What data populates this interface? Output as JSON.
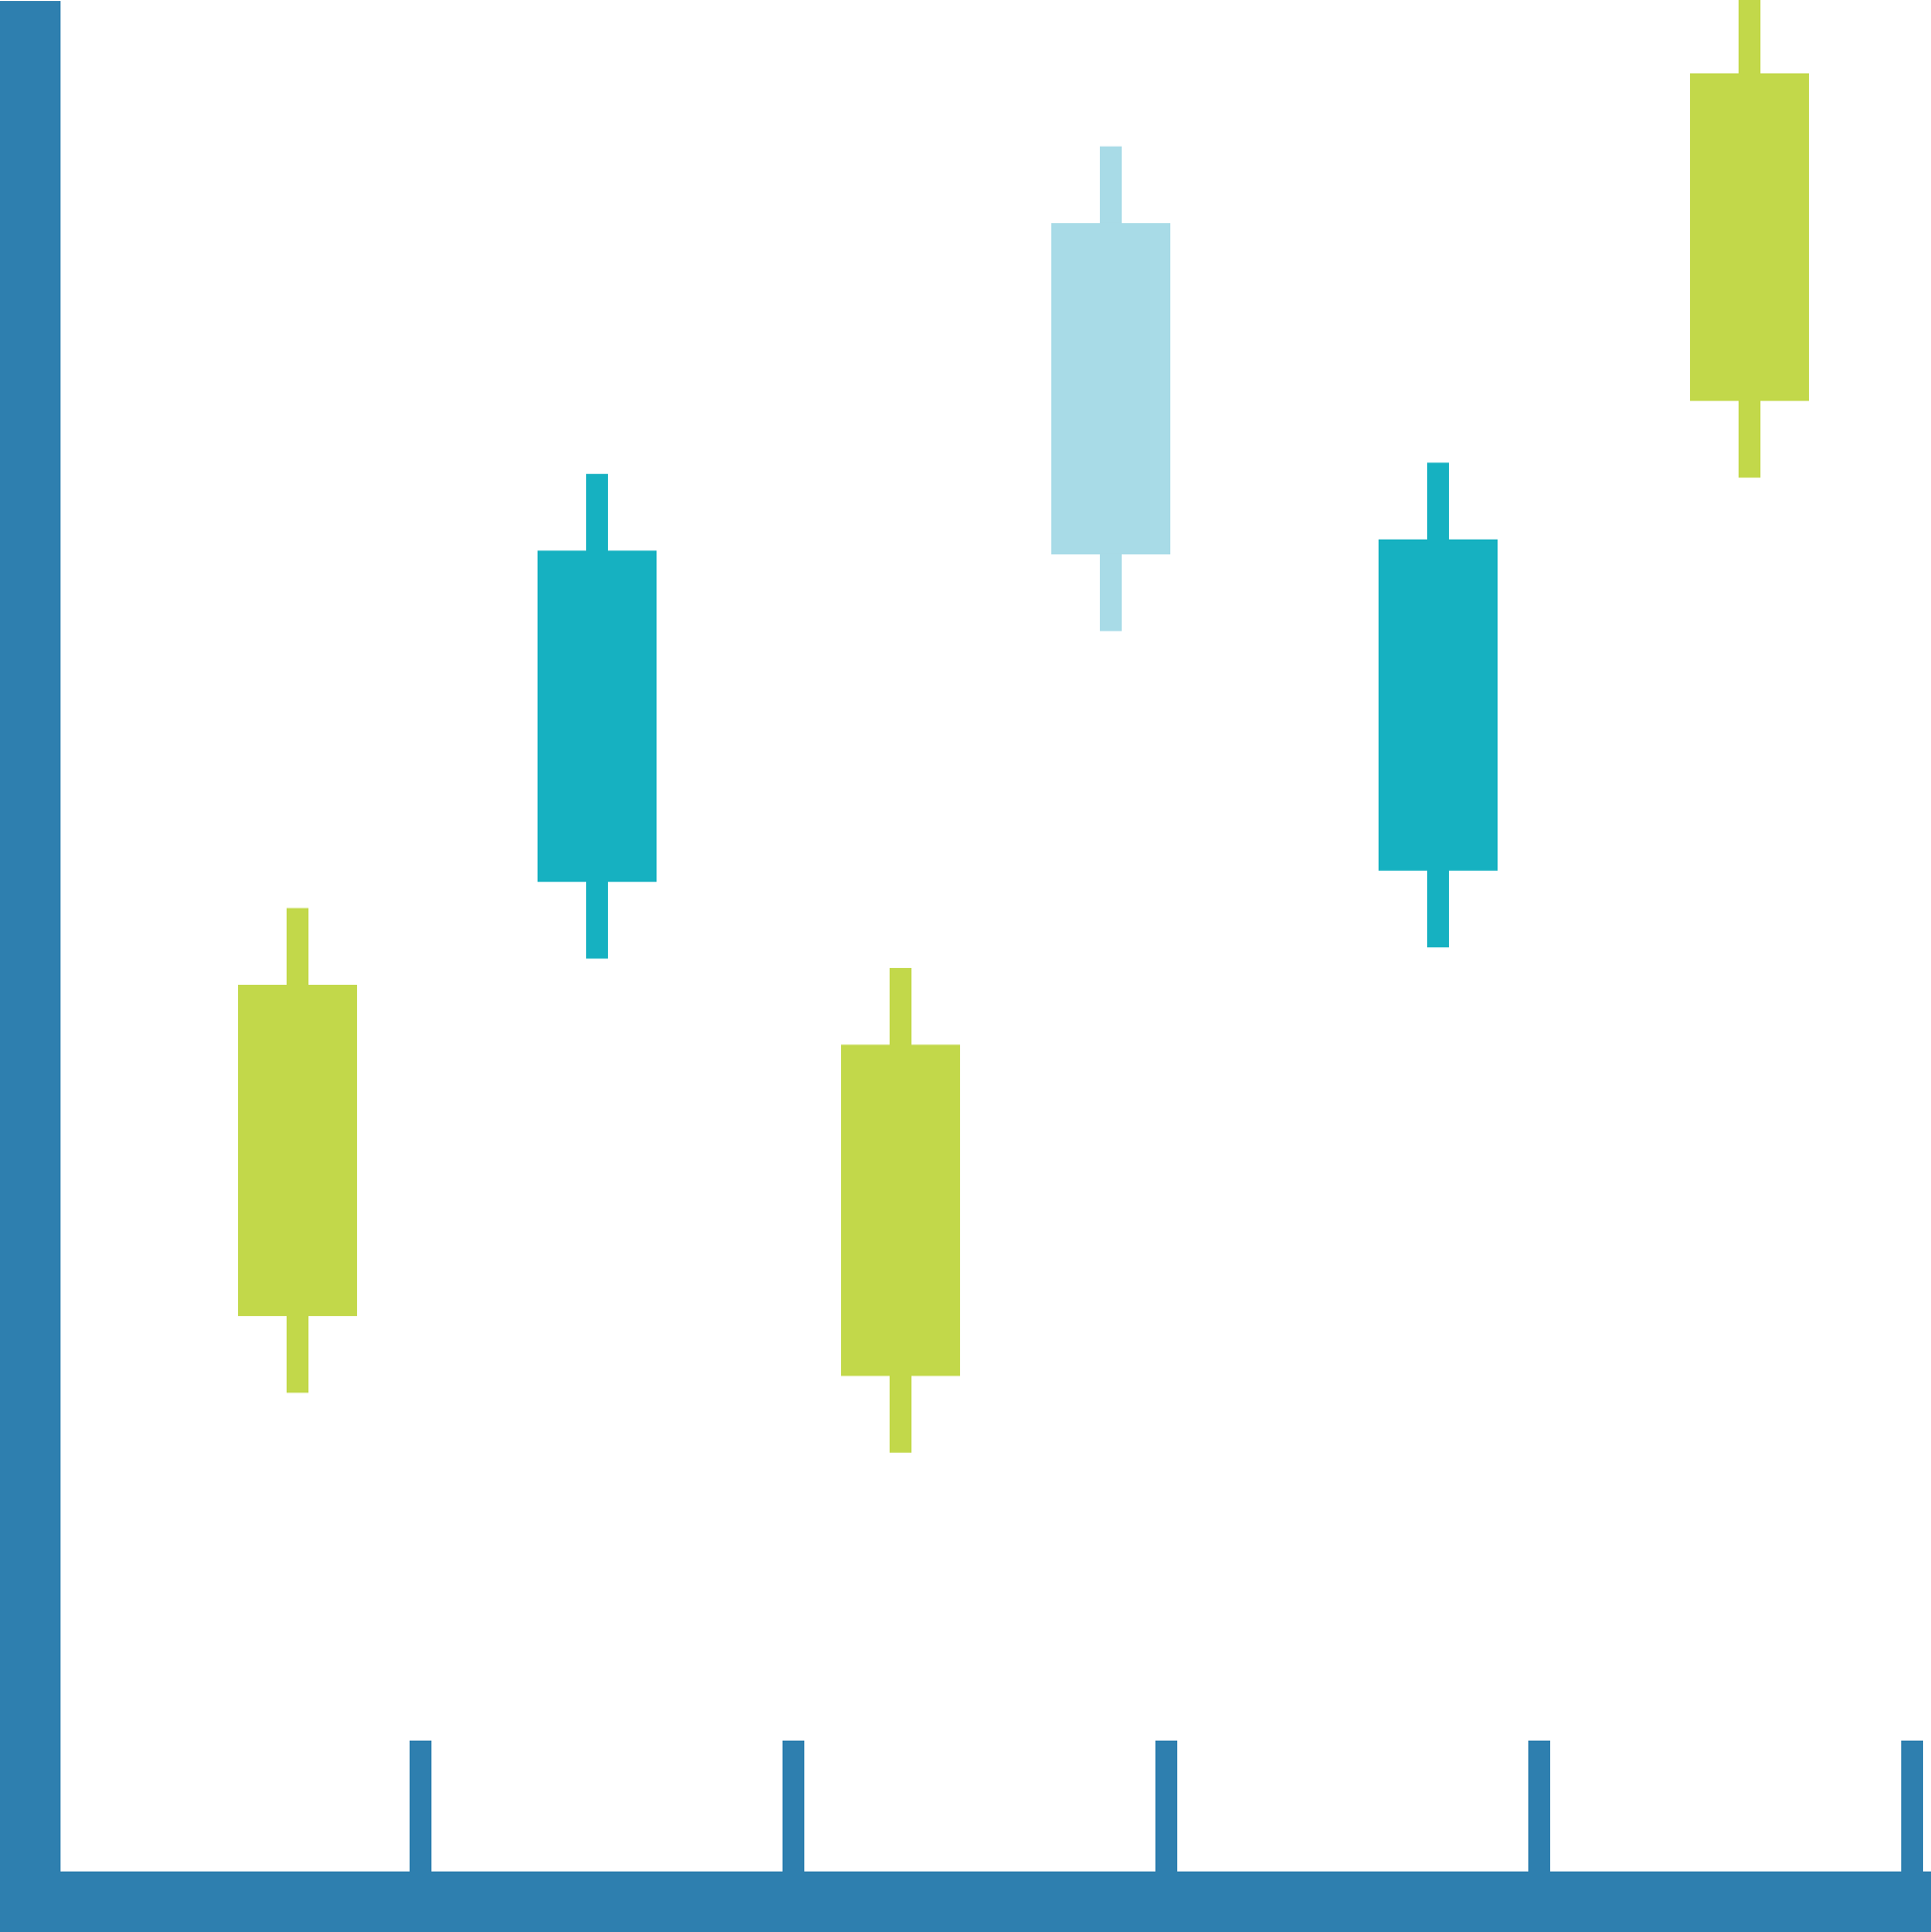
{
  "colors": {
    "axis": "#2e7faf",
    "up": "#c2d84a",
    "down": "#16b1c1",
    "neutral": "#a8dbe7",
    "background": "#ffffff"
  },
  "chart_data": {
    "type": "candlestick",
    "title": "",
    "xlabel": "",
    "ylabel": "",
    "grid": false,
    "legend": "none",
    "x_ticks": 5,
    "ylim": [
      0,
      100
    ],
    "candles": [
      {
        "open": 33.6,
        "close": 51.3,
        "high": 55.4,
        "low": 29.5,
        "color_key": "up"
      },
      {
        "open": 56.8,
        "close": 74.5,
        "high": 78.6,
        "low": 52.7,
        "color_key": "down"
      },
      {
        "open": 30.4,
        "close": 48.1,
        "high": 52.2,
        "low": 26.3,
        "color_key": "up"
      },
      {
        "open": 74.3,
        "close": 92.0,
        "high": 96.1,
        "low": 70.2,
        "color_key": "neutral"
      },
      {
        "open": 57.4,
        "close": 75.1,
        "high": 79.2,
        "low": 53.3,
        "color_key": "down"
      },
      {
        "open": 82.5,
        "close": 100.0,
        "high": 104.1,
        "low": 78.4,
        "color_key": "up"
      }
    ]
  }
}
